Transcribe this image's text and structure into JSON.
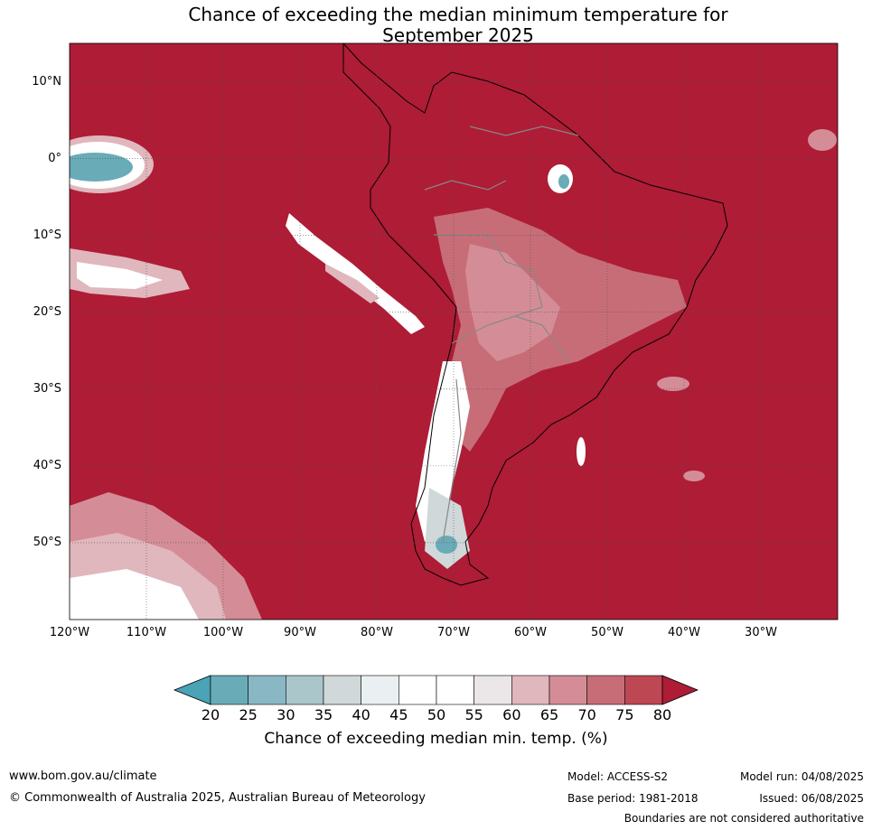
{
  "title": {
    "line1": "Chance of exceeding the median minimum temperature for",
    "line2": "September 2025"
  },
  "map": {
    "lon_range": [
      -120,
      -20
    ],
    "lat_range": [
      -60,
      15
    ],
    "lat_labels": [
      {
        "lat": 10,
        "text": "10°N"
      },
      {
        "lat": 0,
        "text": "0°"
      },
      {
        "lat": -10,
        "text": "10°S"
      },
      {
        "lat": -20,
        "text": "20°S"
      },
      {
        "lat": -30,
        "text": "30°S"
      },
      {
        "lat": -40,
        "text": "40°S"
      },
      {
        "lat": -50,
        "text": "50°S"
      }
    ],
    "lon_labels": [
      {
        "lon": -120,
        "text": "120°W"
      },
      {
        "lon": -110,
        "text": "110°W"
      },
      {
        "lon": -100,
        "text": "100°W"
      },
      {
        "lon": -90,
        "text": "90°W"
      },
      {
        "lon": -80,
        "text": "80°W"
      },
      {
        "lon": -70,
        "text": "70°W"
      },
      {
        "lon": -60,
        "text": "60°W"
      },
      {
        "lon": -50,
        "text": "50°W"
      },
      {
        "lon": -40,
        "text": "40°W"
      },
      {
        "lon": -30,
        "text": "30°W"
      }
    ],
    "background_color": "#ae1c36"
  },
  "colorbar": {
    "ticks": [
      "20",
      "25",
      "30",
      "35",
      "40",
      "45",
      "50",
      "55",
      "60",
      "65",
      "70",
      "75",
      "80"
    ],
    "colors": [
      "#6aabb8",
      "#8ab7c4",
      "#aac6cb",
      "#d0d8d9",
      "#eaf0f2",
      "#ffffff",
      "#ffffff",
      "#ebe7e8",
      "#e0b7bd",
      "#d48d96",
      "#c76d77",
      "#bd4753"
    ],
    "low_color": "#4aa3b6",
    "high_color": "#ae1c36",
    "title": "Chance of exceeding median min. temp. (%)"
  },
  "footer": {
    "website": "www.bom.gov.au/climate",
    "copyright": "© Commonwealth of Australia 2025, Australian Bureau of Meteorology",
    "model": "Model: ACCESS-S2",
    "base_period": "Base period: 1981-2018",
    "model_run": "Model run: 04/08/2025",
    "issued": "Issued: 06/08/2025",
    "disclaimer": "Boundaries are not considered authoritative"
  }
}
